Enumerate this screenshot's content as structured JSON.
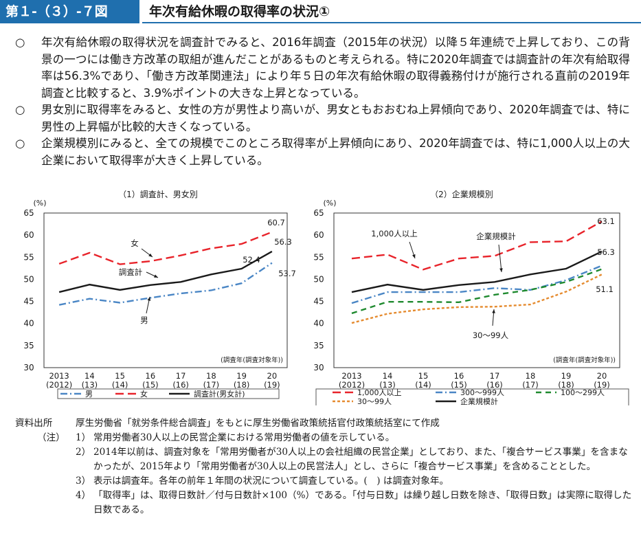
{
  "header": {
    "figure_number": "第１-（３）-７図",
    "title": "年次有給休暇の取得率の状況①"
  },
  "bullets": [
    {
      "mark": "○",
      "text": "年次有給休暇の取得状況を調査計でみると、2016年調査（2015年の状況）以降５年連続で上昇しており、この背景の一つには働き方改革の取組が進んだことがあるものと考えられる。特に2020年調査では調査計の年次有給取得率は56.3%であり、「働き方改革関連法」により年５日の年次有給休暇の取得義務付けが施行される直前の2019年調査と比較すると、3.9%ポイントの大きな上昇となっている。"
    },
    {
      "mark": "○",
      "text": "男女別に取得率をみると、女性の方が男性より高いが、男女ともおおむね上昇傾向であり、2020年調査では、特に男性の上昇幅が比較的大きくなっている。"
    },
    {
      "mark": "○",
      "text": "企業規模別にみると、全ての規模でこのところ取得率が上昇傾向にあり、2020年調査では、特に1,000人以上の大企業において取得率が大きく上昇している。"
    }
  ],
  "chart_data": [
    {
      "type": "line",
      "title": "（1）調査計、男女別",
      "ylabel": "(%)",
      "axis_note": "(調査年(調査対象年))",
      "ylim": [
        30,
        65
      ],
      "yticks": [
        "30",
        "35",
        "40",
        "45",
        "50",
        "55",
        "60",
        "65"
      ],
      "categories": [
        "2013\n(2012)",
        "14\n(13)",
        "15\n(14)",
        "16\n(15)",
        "17\n(16)",
        "18\n(17)",
        "19\n(18)",
        "20\n(19)"
      ],
      "series": [
        {
          "name": "男",
          "color": "#4a86c5",
          "dash": "10,4,2,4",
          "values": [
            44.2,
            45.6,
            44.7,
            45.8,
            46.8,
            47.5,
            49.1,
            53.7
          ]
        },
        {
          "name": "女",
          "color": "#e8232a",
          "dash": "12,6",
          "values": [
            53.5,
            56.0,
            53.4,
            54.1,
            55.4,
            57.0,
            58.0,
            60.7
          ]
        },
        {
          "name": "調査計(男女計)",
          "color": "#1a1a1a",
          "dash": "",
          "values": [
            47.1,
            48.8,
            47.6,
            48.7,
            49.4,
            51.1,
            52.4,
            56.3
          ]
        }
      ],
      "annotations": [
        {
          "text": "女"
        },
        {
          "text": "調査計"
        },
        {
          "text": "男"
        },
        {
          "text": "60.7"
        },
        {
          "text": "56.3"
        },
        {
          "text": "52.4"
        },
        {
          "text": "53.7"
        }
      ],
      "legend": [
        "男",
        "女",
        "調査計(男女計)"
      ]
    },
    {
      "type": "line",
      "title": "（2）企業規模別",
      "ylabel": "(%)",
      "axis_note": "(調査年(調査対象年))",
      "ylim": [
        30,
        65
      ],
      "yticks": [
        "30",
        "35",
        "40",
        "45",
        "50",
        "55",
        "60",
        "65"
      ],
      "categories": [
        "2013\n(2012)",
        "14\n(13)",
        "15\n(14)",
        "16\n(15)",
        "17\n(16)",
        "18\n(17)",
        "19\n(18)",
        "20\n(19)"
      ],
      "series": [
        {
          "name": "1,000人以上",
          "color": "#e8232a",
          "dash": "12,6",
          "values": [
            54.7,
            55.6,
            52.2,
            54.7,
            55.3,
            58.4,
            58.6,
            63.1
          ]
        },
        {
          "name": "300～999人",
          "color": "#4a86c5",
          "dash": "10,4,2,4",
          "values": [
            44.6,
            47.1,
            47.1,
            47.1,
            48.0,
            47.6,
            49.8,
            53.1
          ]
        },
        {
          "name": "100～299人",
          "color": "#1f8a2f",
          "dash": "8,6",
          "values": [
            42.3,
            44.9,
            44.9,
            44.8,
            46.5,
            47.6,
            49.4,
            52.3
          ]
        },
        {
          "name": "30～99人",
          "color": "#e58b2f",
          "dash": "4,3",
          "values": [
            40.1,
            42.2,
            43.2,
            43.7,
            43.8,
            44.3,
            47.2,
            51.1
          ]
        },
        {
          "name": "企業規模計",
          "color": "#1a1a1a",
          "dash": "",
          "values": [
            47.1,
            48.8,
            47.6,
            48.7,
            49.4,
            51.1,
            52.4,
            56.3
          ]
        }
      ],
      "annotations": [
        {
          "text": "1,000人以上"
        },
        {
          "text": "企業規模計"
        },
        {
          "text": "30～99人"
        },
        {
          "text": "63.1"
        },
        {
          "text": "56.3"
        },
        {
          "text": "51.1"
        }
      ],
      "legend": [
        "1,000人以上",
        "300～999人",
        "100～299人",
        "30～99人",
        "企業規模計"
      ]
    }
  ],
  "notes": {
    "source_label": "資料出所",
    "source_text": "厚生労働省「就労条件総合調査」をもとに厚生労働省政策統括官付政策統括室にて作成",
    "note_label": "（注）",
    "items": [
      {
        "idx": "1）",
        "text": "常用労働者30人以上の民営企業における常用労働者の値を示している。"
      },
      {
        "idx": "2）",
        "text": "2014年以前は、調査対象を「常用労働者が30人以上の会社組織の民営企業」としており、また、「複合サービス事業」を含まなかったが、2015年より「常用労働者が30人以上の民営法人」とし、さらに「複合サービス事業」を含めることとした。"
      },
      {
        "idx": "3）",
        "text": "表示は調査年。各年の前年１年間の状況について調査している。(　) は調査対象年。"
      },
      {
        "idx": "4）",
        "text": "「取得率」は、取得日数計／付与日数計×100（%）である。「付与日数」は繰り越し日数を除き、「取得日数」は実際に取得した日数である。"
      }
    ]
  }
}
